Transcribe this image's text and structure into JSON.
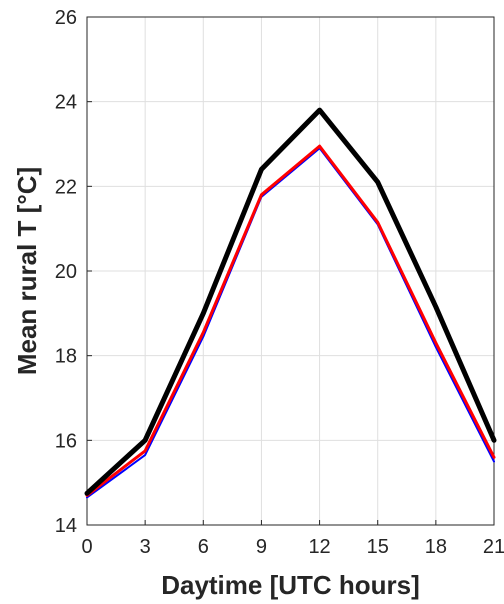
{
  "chart_data": {
    "type": "line",
    "title": "",
    "xlabel": "Daytime [UTC hours]",
    "ylabel": "Mean rural T [°C]",
    "x": [
      0,
      3,
      6,
      9,
      12,
      15,
      18,
      21
    ],
    "xlim": [
      0,
      21
    ],
    "ylim": [
      14,
      26
    ],
    "xticks": [
      0,
      3,
      6,
      9,
      12,
      15,
      18,
      21
    ],
    "yticks": [
      14,
      16,
      18,
      20,
      22,
      24,
      26
    ],
    "grid": true,
    "legend": "none",
    "series": [
      {
        "color": "#0000ff",
        "values": [
          14.65,
          15.65,
          18.45,
          21.75,
          22.9,
          21.1,
          18.2,
          15.5
        ]
      },
      {
        "color": "#ff0000",
        "values": [
          14.7,
          15.75,
          18.55,
          21.8,
          22.95,
          21.15,
          18.3,
          15.6
        ]
      },
      {
        "color": "#000000",
        "values": [
          14.75,
          16.0,
          19.0,
          22.4,
          23.8,
          22.1,
          19.15,
          16.0
        ]
      }
    ]
  }
}
